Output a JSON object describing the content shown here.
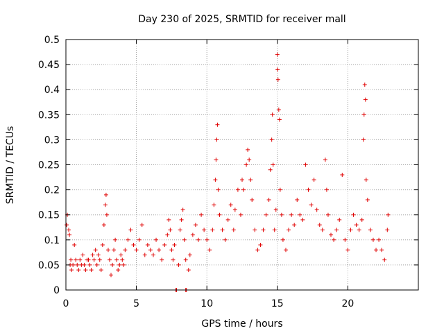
{
  "chart_data": {
    "type": "scatter",
    "title": "Day 230 of 2025, SRMTID for receiver mall",
    "xlabel": "GPS time / hours",
    "ylabel": "SRMTID / TECUs",
    "xlim": [
      0,
      25
    ],
    "ylim": [
      0,
      0.5
    ],
    "xticks": [
      0,
      5,
      10,
      15,
      20
    ],
    "xtick_labels": [
      "0",
      "5",
      "10",
      "15",
      "20"
    ],
    "yticks": [
      0,
      0.05,
      0.1,
      0.15,
      0.2,
      0.25,
      0.3,
      0.35,
      0.4,
      0.45,
      0.5
    ],
    "ytick_labels": [
      "0",
      "0.05",
      "0.1",
      "0.15",
      "0.2",
      "0.25",
      "0.3",
      "0.35",
      "0.4",
      "0.45",
      "0.5"
    ],
    "grid": true,
    "marker": "+",
    "color": "#e00000",
    "series": [
      {
        "name": "SRMTID",
        "points": [
          [
            0.05,
            0.13
          ],
          [
            0.1,
            0.15
          ],
          [
            0.2,
            0.12
          ],
          [
            0.25,
            0.11
          ],
          [
            0.3,
            0.05
          ],
          [
            0.35,
            0.06
          ],
          [
            0.4,
            0.04
          ],
          [
            0.5,
            0.05
          ],
          [
            0.6,
            0.09
          ],
          [
            0.7,
            0.06
          ],
          [
            0.8,
            0.05
          ],
          [
            0.9,
            0.04
          ],
          [
            1.0,
            0.06
          ],
          [
            1.1,
            0.05
          ],
          [
            1.2,
            0.07
          ],
          [
            1.3,
            0.05
          ],
          [
            1.4,
            0.04
          ],
          [
            1.5,
            0.06
          ],
          [
            1.6,
            0.06
          ],
          [
            1.7,
            0.05
          ],
          [
            1.8,
            0.04
          ],
          [
            1.9,
            0.07
          ],
          [
            2.0,
            0.06
          ],
          [
            2.1,
            0.08
          ],
          [
            2.2,
            0.05
          ],
          [
            2.3,
            0.07
          ],
          [
            2.4,
            0.06
          ],
          [
            2.5,
            0.04
          ],
          [
            2.6,
            0.09
          ],
          [
            2.7,
            0.13
          ],
          [
            2.8,
            0.17
          ],
          [
            2.85,
            0.19
          ],
          [
            2.9,
            0.15
          ],
          [
            3.0,
            0.08
          ],
          [
            3.1,
            0.06
          ],
          [
            3.2,
            0.03
          ],
          [
            3.3,
            0.05
          ],
          [
            3.4,
            0.08
          ],
          [
            3.5,
            0.1
          ],
          [
            3.6,
            0.06
          ],
          [
            3.7,
            0.04
          ],
          [
            3.8,
            0.05
          ],
          [
            3.9,
            0.07
          ],
          [
            4.0,
            0.06
          ],
          [
            4.1,
            0.05
          ],
          [
            4.2,
            0.08
          ],
          [
            4.4,
            0.1
          ],
          [
            4.6,
            0.12
          ],
          [
            4.8,
            0.09
          ],
          [
            5.0,
            0.08
          ],
          [
            5.2,
            0.1
          ],
          [
            5.4,
            0.13
          ],
          [
            5.6,
            0.07
          ],
          [
            5.8,
            0.09
          ],
          [
            6.0,
            0.08
          ],
          [
            6.2,
            0.07
          ],
          [
            6.4,
            0.1
          ],
          [
            6.6,
            0.08
          ],
          [
            6.8,
            0.06
          ],
          [
            7.0,
            0.09
          ],
          [
            7.2,
            0.11
          ],
          [
            7.3,
            0.14
          ],
          [
            7.4,
            0.12
          ],
          [
            7.5,
            0.08
          ],
          [
            7.6,
            0.06
          ],
          [
            7.7,
            0.09
          ],
          [
            7.8,
            0.0
          ],
          [
            7.85,
            0.0
          ],
          [
            8.0,
            0.05
          ],
          [
            8.1,
            0.12
          ],
          [
            8.2,
            0.14
          ],
          [
            8.3,
            0.16
          ],
          [
            8.4,
            0.1
          ],
          [
            8.5,
            0.06
          ],
          [
            8.5,
            0.0
          ],
          [
            8.55,
            0.0
          ],
          [
            8.7,
            0.04
          ],
          [
            8.8,
            0.07
          ],
          [
            9.0,
            0.11
          ],
          [
            9.2,
            0.13
          ],
          [
            9.4,
            0.1
          ],
          [
            9.6,
            0.15
          ],
          [
            9.8,
            0.12
          ],
          [
            10.0,
            0.1
          ],
          [
            10.2,
            0.08
          ],
          [
            10.4,
            0.12
          ],
          [
            10.5,
            0.17
          ],
          [
            10.6,
            0.22
          ],
          [
            10.65,
            0.26
          ],
          [
            10.7,
            0.3
          ],
          [
            10.75,
            0.33
          ],
          [
            10.8,
            0.2
          ],
          [
            10.9,
            0.15
          ],
          [
            11.1,
            0.12
          ],
          [
            11.3,
            0.1
          ],
          [
            11.5,
            0.14
          ],
          [
            11.7,
            0.17
          ],
          [
            11.9,
            0.12
          ],
          [
            12.0,
            0.16
          ],
          [
            12.2,
            0.2
          ],
          [
            12.4,
            0.15
          ],
          [
            12.5,
            0.22
          ],
          [
            12.6,
            0.2
          ],
          [
            12.8,
            0.25
          ],
          [
            12.9,
            0.28
          ],
          [
            13.0,
            0.26
          ],
          [
            13.1,
            0.22
          ],
          [
            13.2,
            0.18
          ],
          [
            13.4,
            0.12
          ],
          [
            13.6,
            0.08
          ],
          [
            13.8,
            0.09
          ],
          [
            14.0,
            0.12
          ],
          [
            14.2,
            0.15
          ],
          [
            14.4,
            0.18
          ],
          [
            14.5,
            0.24
          ],
          [
            14.6,
            0.3
          ],
          [
            14.65,
            0.35
          ],
          [
            14.7,
            0.25
          ],
          [
            14.8,
            0.12
          ],
          [
            14.9,
            0.16
          ],
          [
            15.0,
            0.47
          ],
          [
            15.02,
            0.44
          ],
          [
            15.05,
            0.42
          ],
          [
            15.1,
            0.36
          ],
          [
            15.15,
            0.34
          ],
          [
            15.2,
            0.2
          ],
          [
            15.3,
            0.15
          ],
          [
            15.4,
            0.1
          ],
          [
            15.6,
            0.08
          ],
          [
            15.8,
            0.12
          ],
          [
            16.0,
            0.15
          ],
          [
            16.2,
            0.13
          ],
          [
            16.4,
            0.18
          ],
          [
            16.6,
            0.15
          ],
          [
            16.8,
            0.14
          ],
          [
            17.0,
            0.25
          ],
          [
            17.2,
            0.2
          ],
          [
            17.4,
            0.17
          ],
          [
            17.6,
            0.22
          ],
          [
            17.8,
            0.16
          ],
          [
            18.0,
            0.13
          ],
          [
            18.2,
            0.12
          ],
          [
            18.4,
            0.26
          ],
          [
            18.5,
            0.2
          ],
          [
            18.6,
            0.15
          ],
          [
            18.8,
            0.11
          ],
          [
            19.0,
            0.1
          ],
          [
            19.2,
            0.12
          ],
          [
            19.4,
            0.14
          ],
          [
            19.6,
            0.23
          ],
          [
            19.8,
            0.1
          ],
          [
            20.0,
            0.08
          ],
          [
            20.2,
            0.12
          ],
          [
            20.4,
            0.15
          ],
          [
            20.6,
            0.13
          ],
          [
            20.8,
            0.12
          ],
          [
            21.0,
            0.14
          ],
          [
            21.1,
            0.3
          ],
          [
            21.15,
            0.35
          ],
          [
            21.2,
            0.41
          ],
          [
            21.25,
            0.38
          ],
          [
            21.3,
            0.22
          ],
          [
            21.4,
            0.18
          ],
          [
            21.6,
            0.12
          ],
          [
            21.8,
            0.1
          ],
          [
            22.0,
            0.08
          ],
          [
            22.2,
            0.1
          ],
          [
            22.4,
            0.08
          ],
          [
            22.6,
            0.06
          ],
          [
            22.8,
            0.12
          ],
          [
            22.85,
            0.15
          ]
        ]
      }
    ]
  }
}
